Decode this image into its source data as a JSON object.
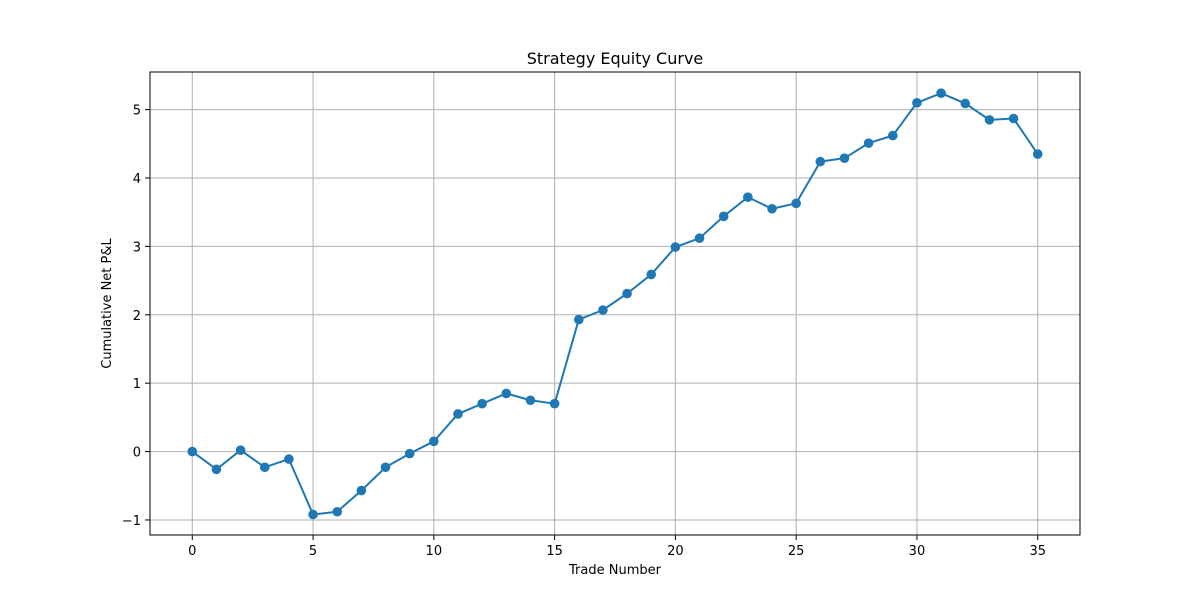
{
  "chart_data": {
    "type": "line",
    "title": "Strategy Equity Curve",
    "xlabel": "Trade Number",
    "ylabel": "Cumulative Net P&L",
    "xlim": [
      -1.75,
      36.75
    ],
    "ylim": [
      -1.22,
      5.55
    ],
    "xticks": [
      0,
      5,
      10,
      15,
      20,
      25,
      30,
      35
    ],
    "yticks": [
      -1,
      0,
      1,
      2,
      3,
      4,
      5
    ],
    "ytick_labels": [
      "−1",
      "0",
      "1",
      "2",
      "3",
      "4",
      "5"
    ],
    "grid": true,
    "line_color": "#1f77b4",
    "marker": "circle",
    "series": [
      {
        "x": [
          0,
          1,
          2,
          3,
          4,
          5,
          6,
          7,
          8,
          9,
          10,
          11,
          12,
          13,
          14,
          15,
          16,
          17,
          18,
          19,
          20,
          21,
          22,
          23,
          24,
          25,
          26,
          27,
          28,
          29,
          30,
          31,
          32,
          33,
          34,
          35
        ],
        "values": [
          0.0,
          -0.26,
          0.02,
          -0.23,
          -0.11,
          -0.92,
          -0.88,
          -0.57,
          -0.23,
          -0.03,
          0.15,
          0.55,
          0.7,
          0.85,
          0.75,
          0.7,
          1.93,
          2.07,
          2.31,
          2.59,
          2.99,
          3.12,
          3.44,
          3.72,
          3.55,
          3.63,
          4.24,
          4.29,
          4.51,
          4.62,
          5.1,
          5.24,
          5.09,
          4.85,
          4.87,
          4.35
        ]
      }
    ]
  }
}
